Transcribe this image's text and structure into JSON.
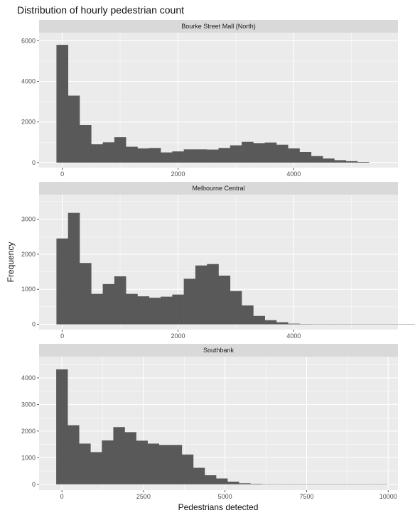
{
  "title": "Distribution of hourly pedestrian count",
  "chart_data": {
    "type": "bar",
    "title": "Distribution of hourly pedestrian count",
    "xlabel": "Pedestrians detected",
    "ylabel": "Frequency",
    "grid": true,
    "colors": {
      "bar": "#595959",
      "panel": "#ebebeb",
      "strip": "#d9d9d9",
      "grid": "#ffffff"
    },
    "panels": [
      {
        "name": "Bourke Street Mall (North)",
        "bin_start": -100,
        "bin_width": 200,
        "values": [
          5800,
          3300,
          1850,
          900,
          1000,
          1250,
          780,
          700,
          720,
          500,
          550,
          650,
          650,
          640,
          720,
          850,
          1020,
          960,
          990,
          880,
          700,
          520,
          320,
          200,
          120,
          70,
          30
        ],
        "xlim": [
          -400,
          5800
        ],
        "xticks": [
          0,
          2000,
          4000
        ],
        "ylim": [
          -250,
          6400
        ],
        "yticks": [
          0,
          2000,
          4000,
          6000
        ]
      },
      {
        "name": "Melbourne Central",
        "bin_start": -100,
        "bin_width": 200,
        "values": [
          2450,
          3180,
          1750,
          870,
          1150,
          1370,
          870,
          800,
          760,
          790,
          850,
          1300,
          1680,
          1720,
          1390,
          950,
          540,
          240,
          120,
          60,
          20,
          10,
          8,
          6,
          5,
          4,
          3,
          2,
          2,
          2,
          2,
          20,
          8,
          5
        ],
        "xlim": [
          -400,
          5800
        ],
        "xticks": [
          0,
          2000,
          4000
        ],
        "ylim": [
          -150,
          3700
        ],
        "yticks": [
          0,
          1000,
          2000,
          3000
        ]
      },
      {
        "name": "Southbank",
        "bin_start": -175,
        "bin_width": 350,
        "values": [
          4320,
          2220,
          1530,
          1210,
          1650,
          2150,
          1960,
          1640,
          1530,
          1480,
          1480,
          1120,
          620,
          340,
          220,
          100,
          40,
          20,
          10,
          6,
          4,
          3,
          3,
          2,
          2,
          2,
          2,
          10,
          4
        ],
        "xlim": [
          -700,
          10300
        ],
        "xticks": [
          0,
          2500,
          5000,
          7500,
          10000
        ],
        "ylim": [
          -220,
          4800
        ],
        "yticks": [
          0,
          1000,
          2000,
          3000,
          4000
        ]
      }
    ]
  }
}
